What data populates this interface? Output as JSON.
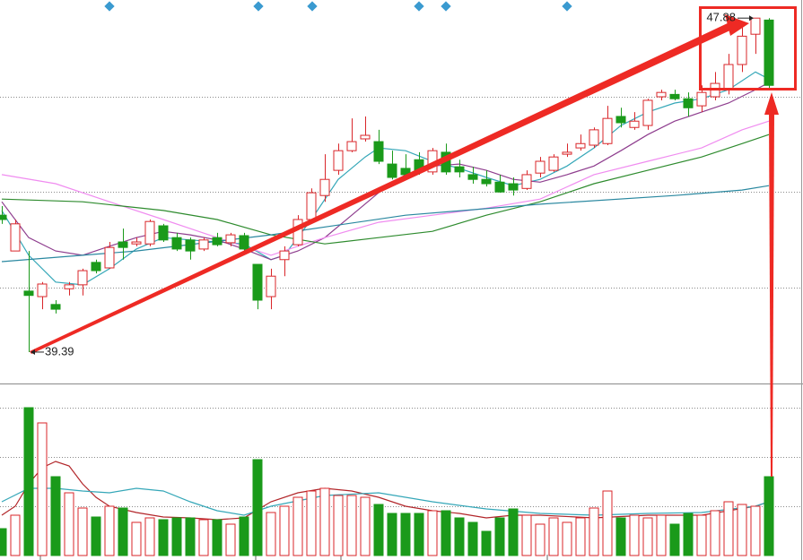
{
  "chart_data": {
    "type": "candlestick",
    "up_color": "#d9262a",
    "down_color": "#1a9a1a",
    "ylim": [
      38.66,
      48.34
    ],
    "yticks": [
      41.03,
      43.46,
      45.88
    ],
    "grid": true,
    "open": [
      42.87,
      41.96,
      40.94,
      40.8,
      40.6,
      41.0,
      41.1,
      41.67,
      41.53,
      42.19,
      42.14,
      42.14,
      42.6,
      42.3,
      42.24,
      42.01,
      42.3,
      42.17,
      42.35,
      41.62,
      40.8,
      41.74,
      42.12,
      42.76,
      43.37,
      44.01,
      44.51,
      44.81,
      44.74,
      44.17,
      44.06,
      44.28,
      43.97,
      44.47,
      44.1,
      43.9,
      43.78,
      43.71,
      43.67,
      43.55,
      43.94,
      44.01,
      44.42,
      44.58,
      44.65,
      44.69,
      45.38,
      45.1,
      45.15,
      45.88,
      45.94,
      45.83,
      45.65,
      45.88,
      46.06,
      46.7,
      47.47,
      47.83
    ],
    "close": [
      42.76,
      42.65,
      40.83,
      41.12,
      40.48,
      41.1,
      41.46,
      41.46,
      42.05,
      42.05,
      42.19,
      42.71,
      42.24,
      42.01,
      41.96,
      42.24,
      42.12,
      42.37,
      42.01,
      40.71,
      41.32,
      41.96,
      42.76,
      43.44,
      43.78,
      44.51,
      44.74,
      44.9,
      44.24,
      43.83,
      43.9,
      44.01,
      44.51,
      43.97,
      43.97,
      43.78,
      43.67,
      43.46,
      43.51,
      43.9,
      44.24,
      44.35,
      44.47,
      44.69,
      45.04,
      45.33,
      45.22,
      45.26,
      45.79,
      45.99,
      45.83,
      45.6,
      45.99,
      46.22,
      46.7,
      47.42,
      47.88,
      46.17
    ],
    "high": [
      43.1,
      42.76,
      41.96,
      41.17,
      40.71,
      41.17,
      41.51,
      41.74,
      42.19,
      42.53,
      42.3,
      42.76,
      42.65,
      42.42,
      42.3,
      42.3,
      42.42,
      42.42,
      42.42,
      41.62,
      41.51,
      42.08,
      42.87,
      43.55,
      44.42,
      44.69,
      45.33,
      45.38,
      45.04,
      44.51,
      44.42,
      44.47,
      44.58,
      44.69,
      44.28,
      44.1,
      44.01,
      43.9,
      43.83,
      44.01,
      44.35,
      44.42,
      44.69,
      44.92,
      45.1,
      45.65,
      45.6,
      45.49,
      45.83,
      46.06,
      46.06,
      45.99,
      46.17,
      46.51,
      46.97,
      47.65,
      47.88,
      47.88
    ],
    "low": [
      42.65,
      41.96,
      39.39,
      40.48,
      40.37,
      40.83,
      40.83,
      41.39,
      41.51,
      41.74,
      42.08,
      42.08,
      42.19,
      41.96,
      41.74,
      41.96,
      42.08,
      42.08,
      41.96,
      40.48,
      40.48,
      41.32,
      42.08,
      42.65,
      43.21,
      43.9,
      44.47,
      44.74,
      44.17,
      43.78,
      43.83,
      43.9,
      43.9,
      43.9,
      43.83,
      43.67,
      43.6,
      43.44,
      43.37,
      43.51,
      43.83,
      43.97,
      44.35,
      44.51,
      44.58,
      44.65,
      45.1,
      45.04,
      45.04,
      45.79,
      45.79,
      45.38,
      45.49,
      45.79,
      45.94,
      46.51,
      46.97,
      46.06
    ],
    "lines": [
      {
        "color": "#35a7b8",
        "x": [
          0,
          2,
          4,
          6,
          8,
          10,
          12,
          14,
          16,
          18,
          20,
          21,
          23,
          25,
          27,
          28,
          30,
          32,
          34,
          36,
          38,
          40,
          42,
          44,
          46,
          48,
          50,
          52,
          54,
          56,
          57
        ],
        "values": [
          42.99,
          41.85,
          41.17,
          41.1,
          41.51,
          42.01,
          42.3,
          42.24,
          42.19,
          42.14,
          41.74,
          41.85,
          42.76,
          43.78,
          44.35,
          44.58,
          44.51,
          44.24,
          44.06,
          43.83,
          43.62,
          43.78,
          44.12,
          44.58,
          45.15,
          45.49,
          45.72,
          45.83,
          46.06,
          46.51,
          46.33
        ]
      },
      {
        "color": "#8e3d8e",
        "x": [
          0,
          2,
          4,
          6,
          8,
          10,
          12,
          14,
          16,
          18,
          20,
          22,
          24,
          26,
          28,
          30,
          32,
          34,
          36,
          38,
          40,
          42,
          44,
          46,
          48,
          50,
          52,
          54,
          56,
          57
        ],
        "values": [
          43.21,
          42.3,
          41.96,
          41.85,
          42.08,
          42.3,
          42.46,
          42.37,
          42.24,
          42.01,
          41.74,
          41.96,
          42.3,
          42.87,
          43.44,
          43.9,
          44.12,
          44.17,
          44.01,
          43.78,
          43.71,
          43.9,
          44.12,
          44.51,
          44.92,
          45.26,
          45.49,
          45.72,
          46.06,
          46.24
        ]
      },
      {
        "color": "#f08cf0",
        "x": [
          0,
          4,
          8,
          12,
          16,
          20,
          22,
          24,
          28,
          32,
          36,
          40,
          44,
          48,
          52,
          55,
          57
        ],
        "values": [
          43.9,
          43.67,
          43.21,
          42.76,
          42.3,
          41.85,
          42.08,
          42.3,
          42.69,
          42.87,
          43.05,
          43.28,
          43.9,
          44.24,
          44.58,
          45.04,
          45.26
        ]
      },
      {
        "color": "#2e8b2e",
        "x": [
          0,
          6,
          12,
          16,
          20,
          24,
          28,
          32,
          36,
          40,
          44,
          48,
          52,
          55,
          57
        ],
        "values": [
          43.28,
          43.21,
          42.99,
          42.76,
          42.37,
          42.14,
          42.3,
          42.46,
          42.87,
          43.21,
          43.67,
          44.01,
          44.35,
          44.69,
          44.92
        ]
      },
      {
        "color": "#2a88a0",
        "x": [
          0,
          10,
          20,
          30,
          40,
          50,
          55,
          57
        ],
        "values": [
          41.69,
          41.96,
          42.37,
          42.87,
          43.15,
          43.37,
          43.51,
          43.62
        ]
      }
    ],
    "volume": {
      "ylim": [
        0,
        170
      ],
      "yticks": [
        55,
        110,
        165
      ],
      "values": [
        30,
        45,
        165,
        148,
        88,
        70,
        53,
        43,
        55,
        53,
        37,
        42,
        40,
        42,
        42,
        40,
        40,
        35,
        43,
        107,
        48,
        55,
        65,
        72,
        75,
        67,
        67,
        65,
        57,
        47,
        47,
        47,
        50,
        50,
        42,
        37,
        27,
        42,
        52,
        45,
        35,
        42,
        37,
        42,
        53,
        72,
        42,
        45,
        42,
        45,
        35,
        47,
        45,
        50,
        60,
        57,
        55,
        88
      ],
      "lines": [
        {
          "color": "#b2262a",
          "x": [
            0,
            1,
            2,
            3,
            4,
            5,
            6,
            7,
            8,
            10,
            12,
            14,
            16,
            18,
            20,
            22,
            24,
            26,
            28,
            30,
            32,
            34,
            36,
            38,
            40,
            44,
            48,
            52,
            56,
            57
          ],
          "values": [
            45,
            55,
            80,
            98,
            105,
            100,
            80,
            65,
            55,
            48,
            43,
            42,
            40,
            42,
            60,
            70,
            75,
            72,
            65,
            55,
            50,
            47,
            42,
            45,
            45,
            42,
            45,
            45,
            55,
            60
          ]
        },
        {
          "color": "#35a7b8",
          "x": [
            0,
            2,
            4,
            6,
            8,
            10,
            12,
            14,
            16,
            18,
            20,
            24,
            28,
            32,
            36,
            40,
            44,
            48,
            52,
            56,
            57
          ],
          "values": [
            60,
            75,
            75,
            72,
            70,
            75,
            72,
            60,
            50,
            45,
            55,
            67,
            70,
            60,
            52,
            47,
            45,
            47,
            48,
            55,
            60
          ]
        }
      ]
    }
  }
}
